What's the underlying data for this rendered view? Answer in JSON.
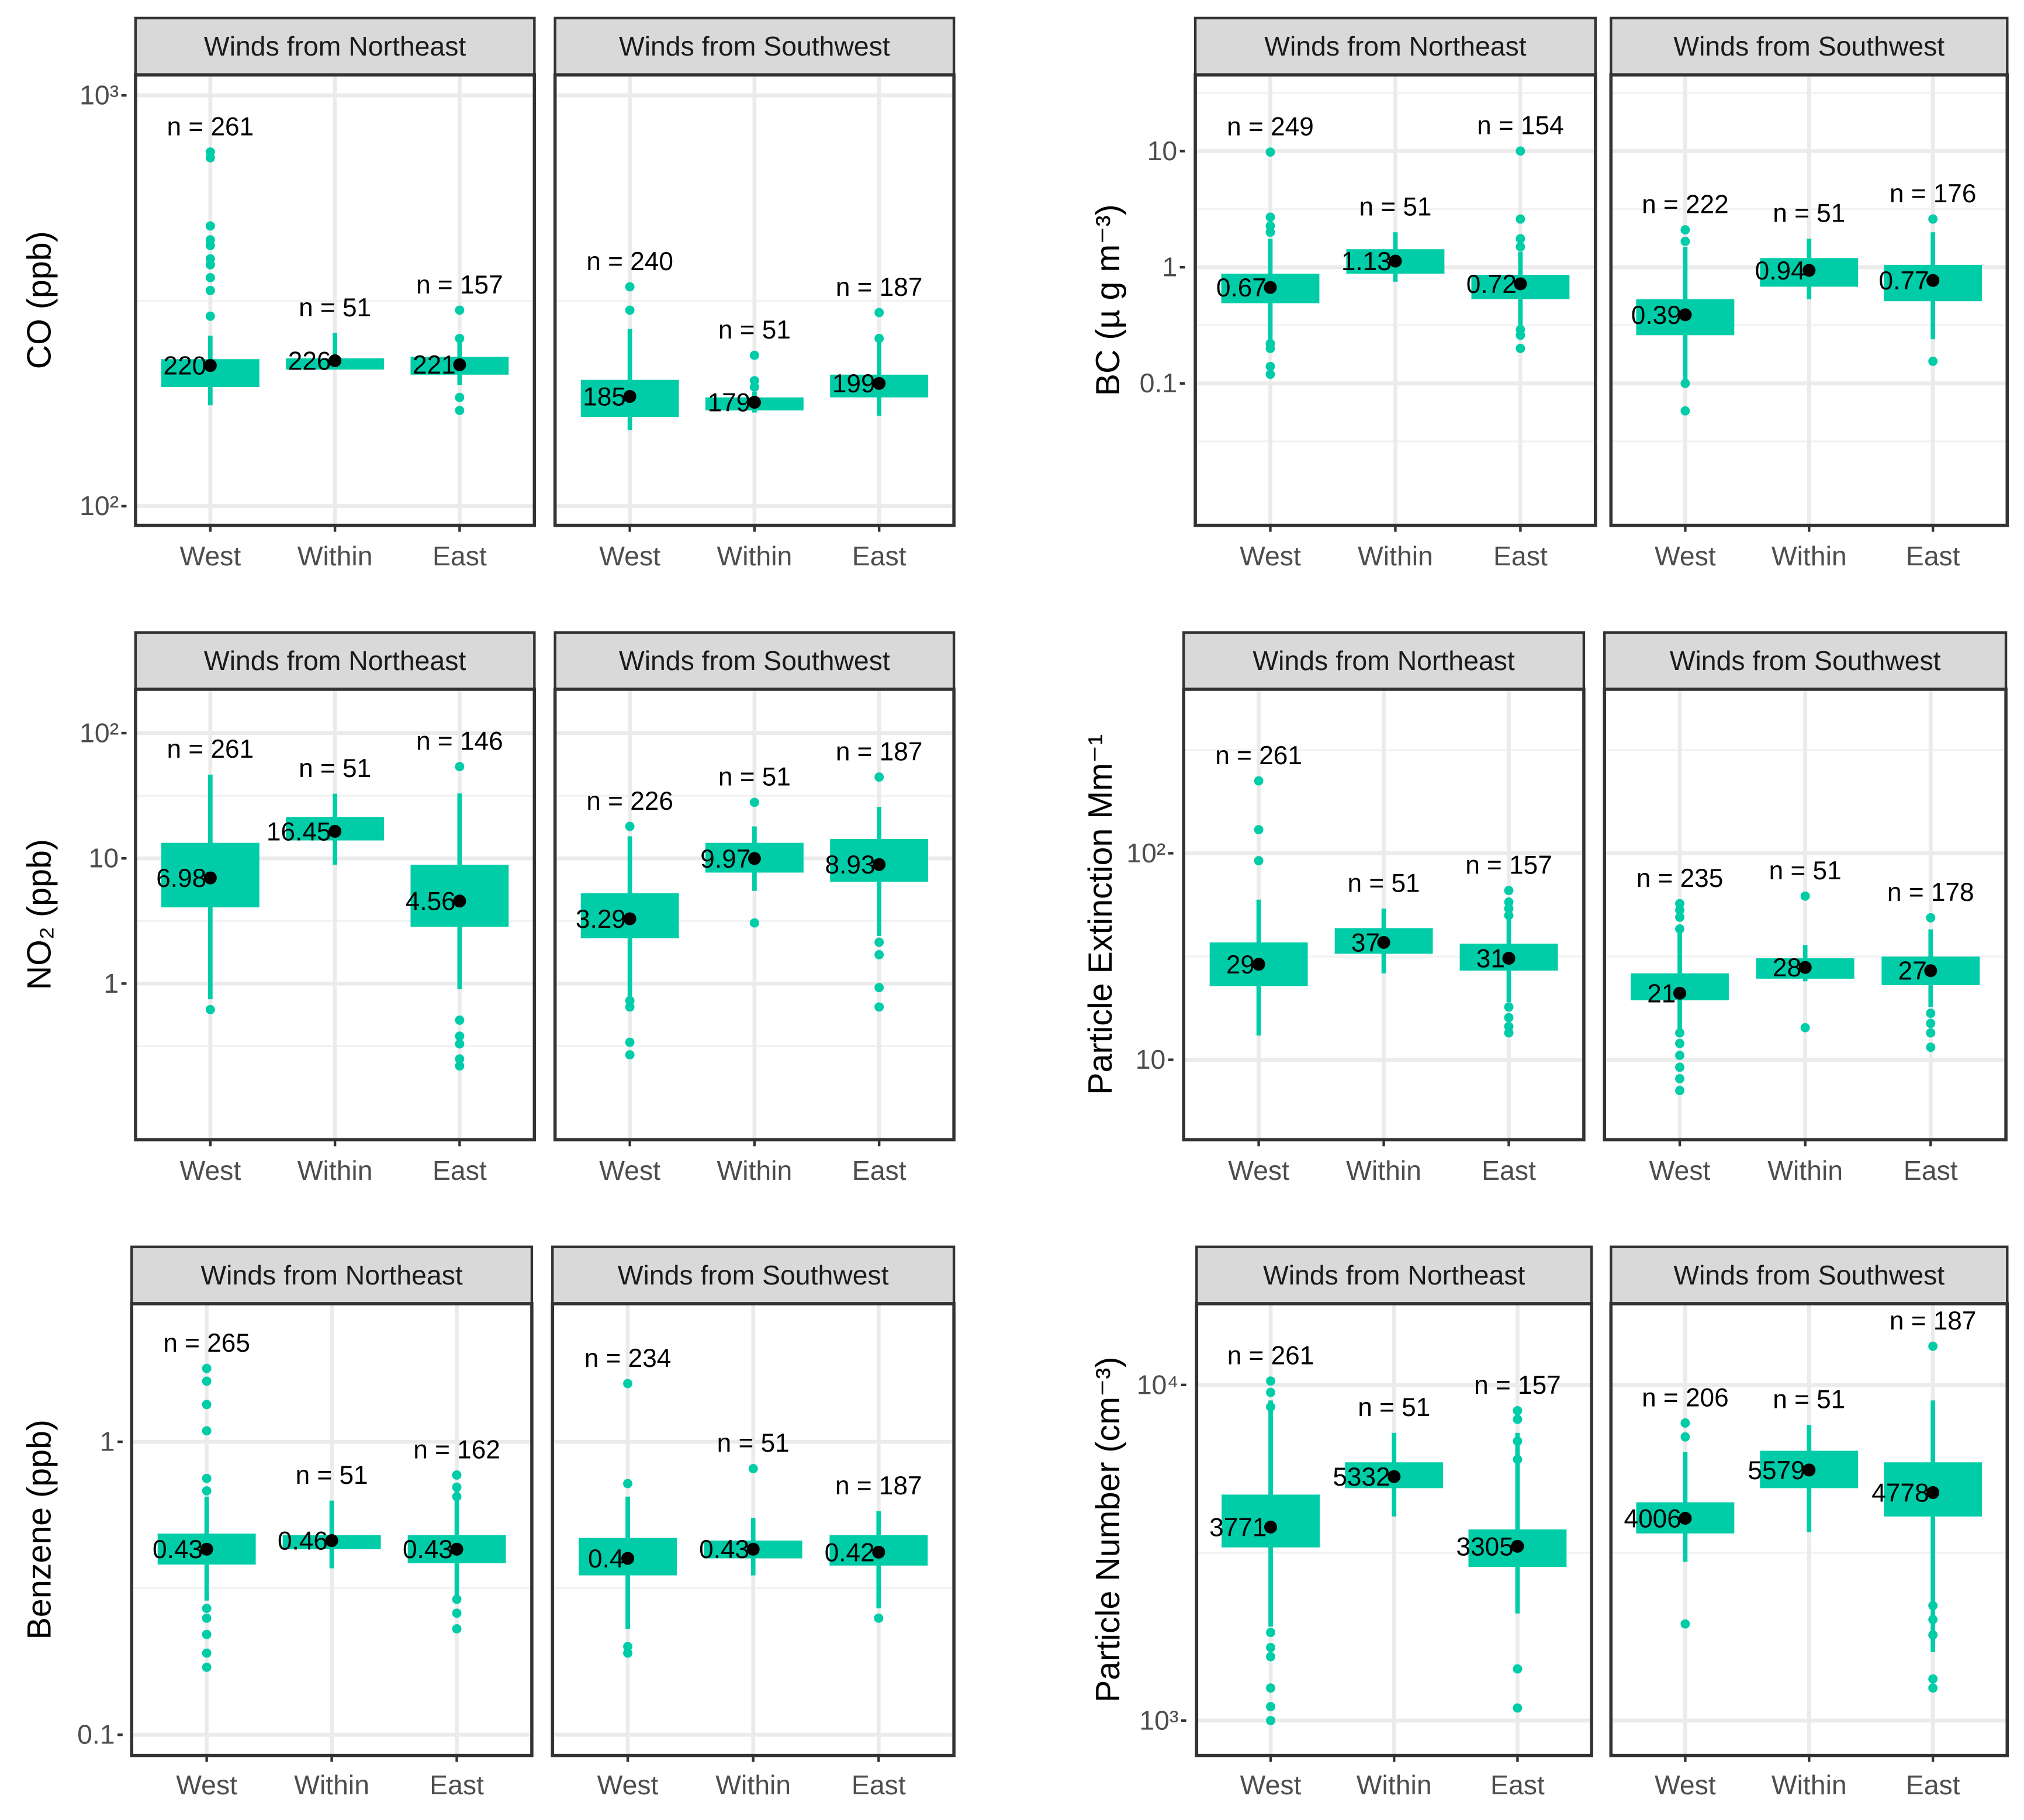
{
  "accent_color": "#00CCA8",
  "chart_data": [
    {
      "type": "boxplot",
      "ylabel": "CO (ppb)",
      "scale": "log10",
      "ylim": [
        89.8,
        1122
      ],
      "categories": [
        "West",
        "Within",
        "East"
      ],
      "yticks": [
        {
          "value": 1000,
          "label": "10³"
        },
        {
          "value": 100,
          "label": "10²"
        }
      ],
      "facets": [
        {
          "title": "Winds from Northeast",
          "groups": [
            {
              "x": "West",
              "n": 261,
              "n_label": "n = 261",
              "median": 220,
              "median_label": "220",
              "q1": 195,
              "q3": 228,
              "whisker_low": 176,
              "whisker_high": 260,
              "outliers": [
                728,
                705,
                481,
                445,
                431,
                400,
                387,
                360,
                335,
                290
              ]
            },
            {
              "x": "Within",
              "n": 51,
              "n_label": "n = 51",
              "median": 226,
              "median_label": "226",
              "q1": 215,
              "q3": 229,
              "whisker_low": 215,
              "whisker_high": 264,
              "outliers": []
            },
            {
              "x": "East",
              "n": 157,
              "n_label": "n = 157",
              "median": 221,
              "median_label": "221",
              "q1": 209,
              "q3": 231,
              "whisker_low": 197,
              "whisker_high": 256,
              "outliers": [
                300,
                256,
                184,
                171
              ]
            }
          ]
        },
        {
          "title": "Winds from Southwest",
          "groups": [
            {
              "x": "West",
              "n": 240,
              "n_label": "n = 240",
              "median": 185,
              "median_label": "185",
              "q1": 165,
              "q3": 203,
              "whisker_low": 153,
              "whisker_high": 270,
              "outliers": [
                342,
                300
              ]
            },
            {
              "x": "Within",
              "n": 51,
              "n_label": "n = 51",
              "median": 179,
              "median_label": "179",
              "q1": 171,
              "q3": 184,
              "whisker_low": 169,
              "whisker_high": 190,
              "outliers": [
                233,
                202,
                195
              ]
            },
            {
              "x": "East",
              "n": 187,
              "n_label": "n = 187",
              "median": 199,
              "median_label": "199",
              "q1": 184,
              "q3": 209,
              "whisker_low": 166,
              "whisker_high": 251,
              "outliers": [
                296,
                256
              ]
            }
          ]
        }
      ]
    },
    {
      "type": "boxplot",
      "ylabel": "BC (µ  g m⁻³)",
      "scale": "log10",
      "ylim": [
        0.006,
        45.3
      ],
      "categories": [
        "West",
        "Within",
        "East"
      ],
      "yticks": [
        {
          "value": 10,
          "label": "10"
        },
        {
          "value": 1,
          "label": "1"
        },
        {
          "value": 0.1,
          "label": "0.1"
        }
      ],
      "facets": [
        {
          "title": "Winds from Northeast",
          "groups": [
            {
              "x": "West",
              "n": 249,
              "n_label": "n = 249",
              "median": 0.67,
              "median_label": "0.67",
              "q1": 0.49,
              "q3": 0.88,
              "whisker_low": 0.23,
              "whisker_high": 1.76,
              "outliers": [
                9.8,
                2.7,
                2.27,
                2.0,
                0.22,
                0.2,
                0.14,
                0.12
              ]
            },
            {
              "x": "Within",
              "n": 51,
              "n_label": "n = 51",
              "median": 1.13,
              "median_label": "1.13",
              "q1": 0.88,
              "q3": 1.43,
              "whisker_low": 0.75,
              "whisker_high": 2.0,
              "outliers": []
            },
            {
              "x": "East",
              "n": 154,
              "n_label": "n = 154",
              "median": 0.72,
              "median_label": "0.72",
              "q1": 0.53,
              "q3": 0.86,
              "whisker_low": 0.29,
              "whisker_high": 1.36,
              "outliers": [
                10,
                2.6,
                1.76,
                1.5,
                0.29,
                0.26,
                0.2
              ]
            }
          ]
        },
        {
          "title": "Winds from Southwest",
          "groups": [
            {
              "x": "West",
              "n": 222,
              "n_label": "n = 222",
              "median": 0.39,
              "median_label": "0.39",
              "q1": 0.26,
              "q3": 0.53,
              "whisker_low": 0.105,
              "whisker_high": 1.5,
              "outliers": [
                2.1,
                1.67,
                0.1,
                0.058
              ]
            },
            {
              "x": "Within",
              "n": 51,
              "n_label": "n = 51",
              "median": 0.94,
              "median_label": "0.94",
              "q1": 0.68,
              "q3": 1.2,
              "whisker_low": 0.53,
              "whisker_high": 1.76,
              "outliers": []
            },
            {
              "x": "East",
              "n": 176,
              "n_label": "n = 176",
              "median": 0.77,
              "median_label": "0.77",
              "q1": 0.51,
              "q3": 1.05,
              "whisker_low": 0.24,
              "whisker_high": 2.0,
              "outliers": [
                2.6,
                0.155
              ]
            }
          ]
        }
      ]
    },
    {
      "type": "boxplot",
      "ylabel": "NO₂ (ppb)",
      "scale": "log10",
      "ylim": [
        0.0566,
        224
      ],
      "categories": [
        "West",
        "Within",
        "East"
      ],
      "yticks": [
        {
          "value": 100,
          "label": "10²"
        },
        {
          "value": 10,
          "label": "10"
        },
        {
          "value": 1,
          "label": "1"
        }
      ],
      "facets": [
        {
          "title": "Winds from Northeast",
          "groups": [
            {
              "x": "West",
              "n": 261,
              "n_label": "n = 261",
              "median": 6.98,
              "median_label": "6.98",
              "q1": 4.06,
              "q3": 13.3,
              "whisker_low": 0.75,
              "whisker_high": 46.7,
              "outliers": [
                0.62
              ]
            },
            {
              "x": "Within",
              "n": 51,
              "n_label": "n = 51",
              "median": 16.45,
              "median_label": "16.45",
              "q1": 13.9,
              "q3": 21.4,
              "whisker_low": 8.9,
              "whisker_high": 32.8,
              "outliers": []
            },
            {
              "x": "East",
              "n": 146,
              "n_label": "n = 146",
              "median": 4.56,
              "median_label": "4.56",
              "q1": 2.84,
              "q3": 8.9,
              "whisker_low": 0.9,
              "whisker_high": 33,
              "outliers": [
                54,
                0.51,
                0.38,
                0.33,
                0.25,
                0.22
              ]
            }
          ]
        },
        {
          "title": "Winds from Southwest",
          "groups": [
            {
              "x": "West",
              "n": 226,
              "n_label": "n = 226",
              "median": 3.29,
              "median_label": "3.29",
              "q1": 2.3,
              "q3": 5.27,
              "whisker_low": 0.79,
              "whisker_high": 15,
              "outliers": [
                18,
                0.73,
                0.65,
                0.34,
                0.27
              ]
            },
            {
              "x": "Within",
              "n": 51,
              "n_label": "n = 51",
              "median": 9.97,
              "median_label": "9.97",
              "q1": 7.7,
              "q3": 13.3,
              "whisker_low": 5.5,
              "whisker_high": 18,
              "outliers": [
                28,
                3.05
              ]
            },
            {
              "x": "East",
              "n": 187,
              "n_label": "n = 187",
              "median": 8.93,
              "median_label": "8.93",
              "q1": 6.5,
              "q3": 14.3,
              "whisker_low": 2.4,
              "whisker_high": 25.8,
              "outliers": [
                44.6,
                2.14,
                1.7,
                0.93,
                0.65
              ]
            }
          ]
        }
      ]
    },
    {
      "type": "boxplot",
      "ylabel": "Particle Extinction Mm⁻¹",
      "scale": "log10",
      "ylim": [
        4.1,
        622
      ],
      "categories": [
        "West",
        "Within",
        "East"
      ],
      "yticks": [
        {
          "value": 100,
          "label": "10²"
        },
        {
          "value": 10,
          "label": "10"
        }
      ],
      "facets": [
        {
          "title": "Winds from Northeast",
          "groups": [
            {
              "x": "West",
              "n": 261,
              "n_label": "n = 261",
              "median": 29,
              "median_label": "29",
              "q1": 22.7,
              "q3": 37,
              "whisker_low": 13.1,
              "whisker_high": 59.6,
              "outliers": [
                224,
                130,
                92
              ]
            },
            {
              "x": "Within",
              "n": 51,
              "n_label": "n = 51",
              "median": 37,
              "median_label": "37",
              "q1": 32.6,
              "q3": 43.4,
              "whisker_low": 26.2,
              "whisker_high": 53.9,
              "outliers": []
            },
            {
              "x": "East",
              "n": 157,
              "n_label": "n = 157",
              "median": 31,
              "median_label": "31",
              "q1": 27,
              "q3": 36.5,
              "whisker_low": 19,
              "whisker_high": 50,
              "outliers": [
                66,
                58,
                54,
                50,
                18,
                16,
                14.5,
                13.5
              ]
            }
          ]
        },
        {
          "title": "Winds from Southwest",
          "groups": [
            {
              "x": "West",
              "n": 235,
              "n_label": "n = 235",
              "median": 21,
              "median_label": "21",
              "q1": 19.4,
              "q3": 26.2,
              "whisker_low": 13.5,
              "whisker_high": 43,
              "outliers": [
                57,
                53,
                49,
                43,
                13.5,
                12,
                10.5,
                9.2,
                8.1,
                7.1
              ]
            },
            {
              "x": "Within",
              "n": 51,
              "n_label": "n = 51",
              "median": 28,
              "median_label": "28",
              "q1": 24.7,
              "q3": 31,
              "whisker_low": 24,
              "whisker_high": 35.9,
              "outliers": [
                62,
                14.3
              ]
            },
            {
              "x": "East",
              "n": 178,
              "n_label": "n = 178",
              "median": 27,
              "median_label": "27",
              "q1": 23,
              "q3": 31.6,
              "whisker_low": 18,
              "whisker_high": 42.8,
              "outliers": [
                48.7,
                16.8,
                15,
                13.5,
                11.5
              ]
            }
          ]
        }
      ]
    },
    {
      "type": "boxplot",
      "ylabel": "Benzene (ppb)",
      "scale": "log10",
      "ylim": [
        0.085,
        2.96
      ],
      "categories": [
        "West",
        "Within",
        "East"
      ],
      "yticks": [
        {
          "value": 1,
          "label": "1"
        },
        {
          "value": 0.1,
          "label": "0.1"
        }
      ],
      "facets": [
        {
          "title": "Winds from Northeast",
          "groups": [
            {
              "x": "West",
              "n": 265,
              "n_label": "n = 265",
              "median": 0.43,
              "median_label": "0.43",
              "q1": 0.381,
              "q3": 0.486,
              "whisker_low": 0.287,
              "whisker_high": 0.65,
              "outliers": [
                1.78,
                1.61,
                1.34,
                1.09,
                0.75,
                0.68,
                0.27,
                0.25,
                0.22,
                0.19,
                0.17
              ]
            },
            {
              "x": "Within",
              "n": 51,
              "n_label": "n = 51",
              "median": 0.46,
              "median_label": "0.46",
              "q1": 0.43,
              "q3": 0.48,
              "whisker_low": 0.37,
              "whisker_high": 0.63,
              "outliers": []
            },
            {
              "x": "East",
              "n": 162,
              "n_label": "n = 162",
              "median": 0.43,
              "median_label": "0.43",
              "q1": 0.385,
              "q3": 0.48,
              "whisker_low": 0.3,
              "whisker_high": 0.72,
              "outliers": [
                0.77,
                0.7,
                0.65,
                0.29,
                0.26,
                0.23
              ]
            }
          ]
        },
        {
          "title": "Winds from Southwest",
          "groups": [
            {
              "x": "West",
              "n": 234,
              "n_label": "n = 234",
              "median": 0.4,
              "median_label": "0.4",
              "q1": 0.35,
              "q3": 0.47,
              "whisker_low": 0.23,
              "whisker_high": 0.65,
              "outliers": [
                1.58,
                0.72,
                0.2,
                0.19
              ]
            },
            {
              "x": "Within",
              "n": 51,
              "n_label": "n = 51",
              "median": 0.43,
              "median_label": "0.43",
              "q1": 0.4,
              "q3": 0.46,
              "whisker_low": 0.35,
              "whisker_high": 0.55,
              "outliers": [
                0.81
              ]
            },
            {
              "x": "East",
              "n": 187,
              "n_label": "n = 187",
              "median": 0.42,
              "median_label": "0.42",
              "q1": 0.378,
              "q3": 0.48,
              "whisker_low": 0.27,
              "whisker_high": 0.58,
              "outliers": [
                0.25
              ]
            }
          ]
        }
      ]
    },
    {
      "type": "boxplot",
      "ylabel": "Particle Number (cm⁻³)",
      "scale": "log10",
      "ylim": [
        787,
        17460
      ],
      "categories": [
        "West",
        "Within",
        "East"
      ],
      "yticks": [
        {
          "value": 10000,
          "label": "10⁴"
        },
        {
          "value": 1000,
          "label": "10³"
        }
      ],
      "facets": [
        {
          "title": "Winds from Northeast",
          "groups": [
            {
              "x": "West",
              "n": 261,
              "n_label": "n = 261",
              "median": 3771,
              "median_label": "3771",
              "q1": 3280,
              "q3": 4712,
              "whisker_low": 1905,
              "whisker_high": 8990,
              "outliers": [
                10270,
                9500,
                8600,
                1830,
                1650,
                1550,
                1250,
                1100,
                1000
              ]
            },
            {
              "x": "Within",
              "n": 51,
              "n_label": "n = 51",
              "median": 5332,
              "median_label": "5332",
              "q1": 4925,
              "q3": 5880,
              "whisker_low": 4055,
              "whisker_high": 7200,
              "outliers": []
            },
            {
              "x": "East",
              "n": 157,
              "n_label": "n = 157",
              "median": 3305,
              "median_label": "3305",
              "q1": 2870,
              "q3": 3710,
              "whisker_low": 2085,
              "whisker_high": 7200,
              "outliers": [
                8380,
                7900,
                6800,
                6000,
                1425,
                1090
              ]
            }
          ]
        },
        {
          "title": "Winds from Southwest",
          "groups": [
            {
              "x": "West",
              "n": 206,
              "n_label": "n = 206",
              "median": 4006,
              "median_label": "4006",
              "q1": 3610,
              "q3": 4470,
              "whisker_low": 2970,
              "whisker_high": 6310,
              "outliers": [
                7700,
                7000,
                1940
              ]
            },
            {
              "x": "Within",
              "n": 51,
              "n_label": "n = 51",
              "median": 5579,
              "median_label": "5579",
              "q1": 4925,
              "q3": 6365,
              "whisker_low": 3640,
              "whisker_high": 7600,
              "outliers": []
            },
            {
              "x": "East",
              "n": 187,
              "n_label": "n = 187",
              "median": 4778,
              "median_label": "4778",
              "q1": 4055,
              "q3": 5880,
              "whisker_low": 1600,
              "whisker_high": 8990,
              "outliers": [
                13040,
                2200,
                2000,
                1800,
                1330,
                1250
              ]
            }
          ]
        }
      ]
    }
  ]
}
